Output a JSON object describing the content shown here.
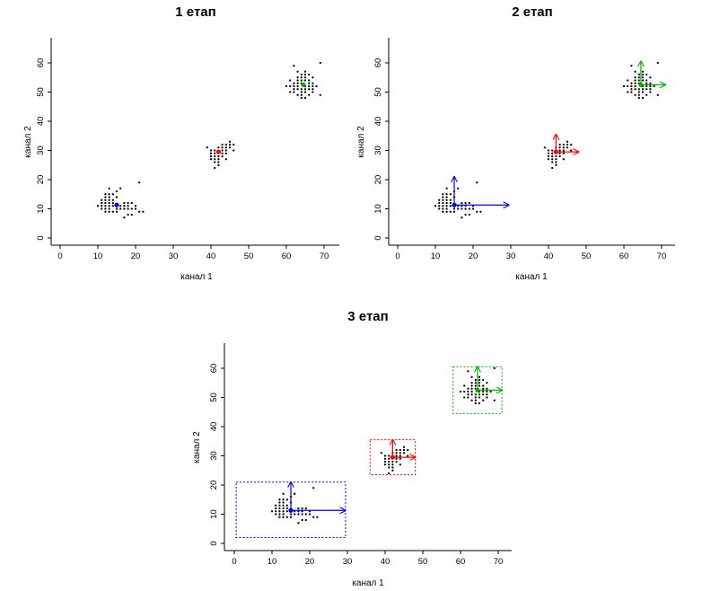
{
  "colors": {
    "blue": "#0000ff",
    "red": "#ff0000",
    "green": "#00b000",
    "points": "#000000"
  },
  "chart_data": [
    {
      "type": "scatter",
      "title": "1 етап",
      "xlabel": "канал 1",
      "ylabel": "канал 2",
      "xlim": [
        0,
        70
      ],
      "ylim": [
        0,
        60
      ],
      "xticks": [
        "0",
        "10",
        "20",
        "30",
        "40",
        "50",
        "60",
        "70"
      ],
      "yticks": [
        "0",
        "10",
        "20",
        "30",
        "40",
        "50",
        "60"
      ],
      "centroids": [
        {
          "x": 15.0,
          "y": 11.3,
          "color": "blue"
        },
        {
          "x": 42.0,
          "y": 29.5,
          "color": "red"
        },
        {
          "x": 64.5,
          "y": 52.5,
          "color": "green"
        }
      ]
    },
    {
      "type": "scatter",
      "title": "2 етап",
      "xlabel": "канал 1",
      "ylabel": "канал 2",
      "xlim": [
        0,
        70
      ],
      "ylim": [
        0,
        60
      ],
      "xticks": [
        "0",
        "10",
        "20",
        "30",
        "40",
        "50",
        "60",
        "70"
      ],
      "yticks": [
        "0",
        "10",
        "20",
        "30",
        "40",
        "50",
        "60"
      ],
      "centroids": [
        {
          "x": 15.0,
          "y": 11.3,
          "color": "blue",
          "arrow_x_end": 29.5,
          "arrow_y_end": 21.0
        },
        {
          "x": 42.0,
          "y": 29.5,
          "color": "red",
          "arrow_x_end": 48.0,
          "arrow_y_end": 35.5
        },
        {
          "x": 64.5,
          "y": 52.5,
          "color": "green",
          "arrow_x_end": 71.0,
          "arrow_y_end": 60.5
        }
      ]
    },
    {
      "type": "scatter",
      "title": "3 етап",
      "xlabel": "канал 1",
      "ylabel": "канал 2",
      "xlim": [
        0,
        70
      ],
      "ylim": [
        0,
        60
      ],
      "xticks": [
        "0",
        "10",
        "20",
        "30",
        "40",
        "50",
        "60",
        "70"
      ],
      "yticks": [
        "0",
        "10",
        "20",
        "30",
        "40",
        "50",
        "60"
      ],
      "centroids": [
        {
          "x": 15.0,
          "y": 11.3,
          "color": "blue",
          "arrow_x_end": 29.5,
          "arrow_y_end": 21.0
        },
        {
          "x": 42.0,
          "y": 29.5,
          "color": "red",
          "arrow_x_end": 48.0,
          "arrow_y_end": 35.5
        },
        {
          "x": 64.5,
          "y": 52.5,
          "color": "green",
          "arrow_x_end": 71.0,
          "arrow_y_end": 60.5
        }
      ],
      "boxes": [
        {
          "x": [
            0.5,
            29.5
          ],
          "y": [
            2.0,
            21.0
          ],
          "color": "blue"
        },
        {
          "x": [
            36.0,
            48.0
          ],
          "y": [
            23.5,
            35.5
          ],
          "color": "red"
        },
        {
          "x": [
            58.0,
            71.0
          ],
          "y": [
            44.5,
            60.5
          ],
          "color": "green"
        }
      ]
    }
  ],
  "points": [
    [
      13,
      17
    ],
    [
      15,
      16
    ],
    [
      16,
      17
    ],
    [
      12,
      15
    ],
    [
      13,
      15
    ],
    [
      14,
      15
    ],
    [
      12,
      14
    ],
    [
      13,
      14
    ],
    [
      15,
      14
    ],
    [
      11,
      13
    ],
    [
      12,
      13
    ],
    [
      13,
      13
    ],
    [
      14,
      13
    ],
    [
      11,
      12
    ],
    [
      12,
      12
    ],
    [
      13,
      12
    ],
    [
      14,
      12
    ],
    [
      10,
      11
    ],
    [
      11,
      11
    ],
    [
      12,
      11
    ],
    [
      13,
      11
    ],
    [
      14,
      11
    ],
    [
      16,
      11
    ],
    [
      11,
      10
    ],
    [
      12,
      10
    ],
    [
      13,
      10
    ],
    [
      15,
      10
    ],
    [
      12,
      9
    ],
    [
      13,
      9
    ],
    [
      14,
      9
    ],
    [
      15,
      9
    ],
    [
      21,
      19
    ],
    [
      17,
      12
    ],
    [
      18,
      12
    ],
    [
      19,
      12
    ],
    [
      17,
      11
    ],
    [
      18,
      11
    ],
    [
      20,
      11
    ],
    [
      16,
      10
    ],
    [
      17,
      10
    ],
    [
      18,
      10
    ],
    [
      19,
      10
    ],
    [
      20,
      10
    ],
    [
      21,
      9
    ],
    [
      22,
      9
    ],
    [
      18,
      8
    ],
    [
      19,
      8
    ],
    [
      17,
      7
    ],
    [
      45,
      33
    ],
    [
      43,
      32
    ],
    [
      44,
      32
    ],
    [
      45,
      32
    ],
    [
      46,
      32
    ],
    [
      42,
      31
    ],
    [
      43,
      31
    ],
    [
      44,
      31
    ],
    [
      45,
      31
    ],
    [
      40,
      30
    ],
    [
      41,
      30
    ],
    [
      43,
      30
    ],
    [
      44,
      30
    ],
    [
      46,
      30
    ],
    [
      40,
      29
    ],
    [
      41,
      29
    ],
    [
      43,
      29
    ],
    [
      44,
      29
    ],
    [
      40,
      28
    ],
    [
      41,
      28
    ],
    [
      42,
      28
    ],
    [
      43,
      28
    ],
    [
      40,
      27
    ],
    [
      41,
      27
    ],
    [
      42,
      27
    ],
    [
      44,
      27
    ],
    [
      41,
      26
    ],
    [
      42,
      26
    ],
    [
      42,
      25
    ],
    [
      41,
      24
    ],
    [
      39,
      31
    ],
    [
      62,
      59
    ],
    [
      69,
      60
    ],
    [
      63,
      57
    ],
    [
      65,
      57
    ],
    [
      64,
      56
    ],
    [
      65,
      56
    ],
    [
      66,
      56
    ],
    [
      63,
      55
    ],
    [
      64,
      55
    ],
    [
      65,
      55
    ],
    [
      67,
      55
    ],
    [
      61,
      54
    ],
    [
      63,
      54
    ],
    [
      64,
      54
    ],
    [
      65,
      54
    ],
    [
      66,
      54
    ],
    [
      62,
      53
    ],
    [
      63,
      53
    ],
    [
      64,
      53
    ],
    [
      66,
      53
    ],
    [
      67,
      53
    ],
    [
      60,
      52
    ],
    [
      61,
      52
    ],
    [
      62,
      52
    ],
    [
      63,
      52
    ],
    [
      65,
      52
    ],
    [
      66,
      52
    ],
    [
      67,
      52
    ],
    [
      68,
      52
    ],
    [
      62,
      51
    ],
    [
      63,
      51
    ],
    [
      64,
      51
    ],
    [
      65,
      51
    ],
    [
      66,
      51
    ],
    [
      67,
      51
    ],
    [
      61,
      50
    ],
    [
      62,
      50
    ],
    [
      64,
      50
    ],
    [
      65,
      50
    ],
    [
      67,
      50
    ],
    [
      63,
      49
    ],
    [
      64,
      49
    ],
    [
      66,
      49
    ],
    [
      69,
      49
    ],
    [
      64,
      48
    ],
    [
      65,
      48
    ]
  ]
}
